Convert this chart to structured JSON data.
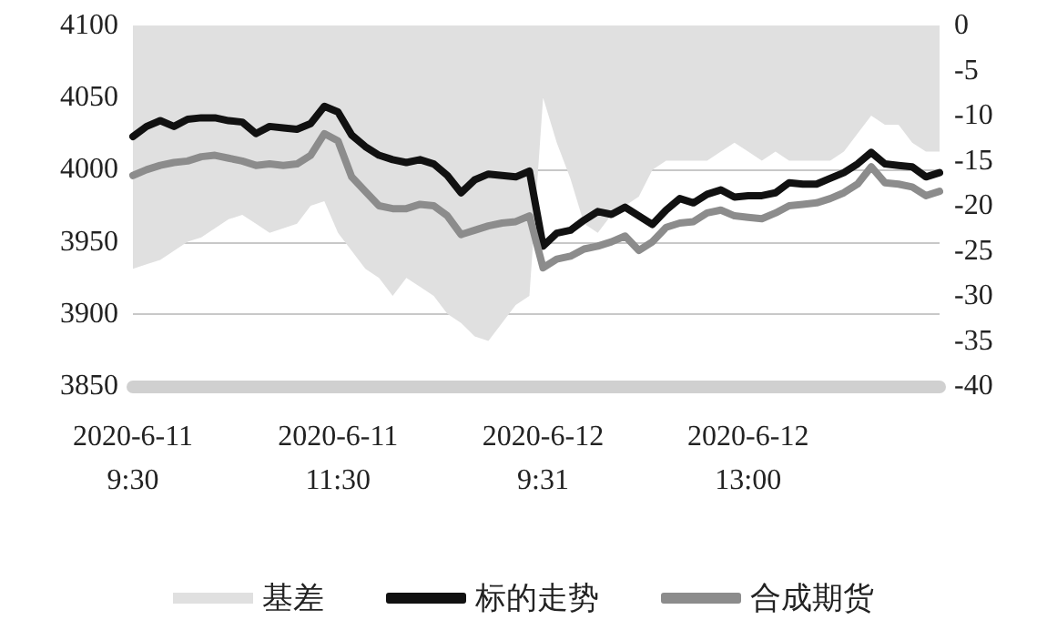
{
  "chart_data": {
    "type": "line",
    "categories": [
      "2020-6-11\n9:30",
      null,
      null,
      null,
      null,
      null,
      null,
      null,
      null,
      null,
      null,
      null,
      null,
      null,
      null,
      "2020-6-11\n11:30",
      null,
      null,
      null,
      null,
      null,
      null,
      null,
      null,
      null,
      null,
      null,
      null,
      null,
      null,
      "2020-6-12\n9:31",
      null,
      null,
      null,
      null,
      null,
      null,
      null,
      null,
      null,
      null,
      null,
      null,
      null,
      null,
      "2020-6-12\n13:00",
      null,
      null,
      null,
      null,
      null,
      null,
      null,
      null,
      null,
      null,
      null,
      null,
      null,
      null
    ],
    "series": [
      {
        "name": "基差",
        "type": "area",
        "axis": "y2",
        "color": "#e0e0e0",
        "values": [
          -27,
          -26.5,
          -26,
          -25,
          -24,
          -23.5,
          -22.5,
          -21.5,
          -21,
          -22,
          -23,
          -22.5,
          -22,
          -20,
          -19.5,
          -23,
          -25,
          -27,
          -28,
          -30,
          -28,
          -29,
          -30,
          -32,
          -33,
          -34.5,
          -35,
          -33,
          -31,
          -30,
          -8,
          -13,
          -17,
          -22,
          -23,
          -21,
          -20,
          -19,
          -16,
          -15,
          -15,
          -15,
          -15,
          -14,
          -13,
          -14,
          -15,
          -14,
          -15,
          -15,
          -15,
          -15,
          -14,
          -12,
          -10,
          -11,
          -11,
          -13,
          -14,
          -14
        ]
      },
      {
        "name": "标的走势",
        "type": "line",
        "color": "#111111",
        "values": [
          4023,
          4030,
          4034,
          4030,
          4035,
          4036,
          4036,
          4034,
          4033,
          4025,
          4030,
          4029,
          4028,
          4032,
          4044,
          4040,
          4024,
          4016,
          4010,
          4007,
          4005,
          4007,
          4004,
          3996,
          3984,
          3993,
          3997,
          3996,
          3995,
          3999,
          3947,
          3956,
          3958,
          3965,
          3971,
          3969,
          3974,
          3968,
          3962,
          3972,
          3980,
          3977,
          3983,
          3986,
          3981,
          3982,
          3982,
          3984,
          3991,
          3990,
          3990,
          3994,
          3998,
          4004,
          4012,
          4004,
          4003,
          4002,
          3995,
          3998
        ]
      },
      {
        "name": "合成期货",
        "type": "line",
        "color": "#8c8c8c",
        "values": [
          3996,
          4000,
          4003,
          4005,
          4006,
          4009,
          4010,
          4008,
          4006,
          4003,
          4004,
          4003,
          4004,
          4010,
          4025,
          4020,
          3995,
          3985,
          3975,
          3973,
          3973,
          3976,
          3975,
          3968,
          3955,
          3958,
          3961,
          3963,
          3964,
          3968,
          3932,
          3938,
          3940,
          3945,
          3947,
          3950,
          3954,
          3944,
          3950,
          3960,
          3963,
          3964,
          3970,
          3972,
          3968,
          3967,
          3966,
          3970,
          3975,
          3976,
          3977,
          3980,
          3984,
          3990,
          4002,
          3991,
          3990,
          3988,
          3982,
          3985
        ]
      }
    ],
    "ylim": [
      3850,
      4100
    ],
    "yticks": [
      3850,
      3900,
      3950,
      4000,
      4050,
      4100
    ],
    "y2lim": [
      -40,
      0
    ],
    "y2ticks": [
      -40,
      -35,
      -30,
      -25,
      -20,
      -15,
      -10,
      -5,
      0
    ],
    "grid": "y",
    "legend": "bottom",
    "marker": "none",
    "line_style": "solid"
  }
}
